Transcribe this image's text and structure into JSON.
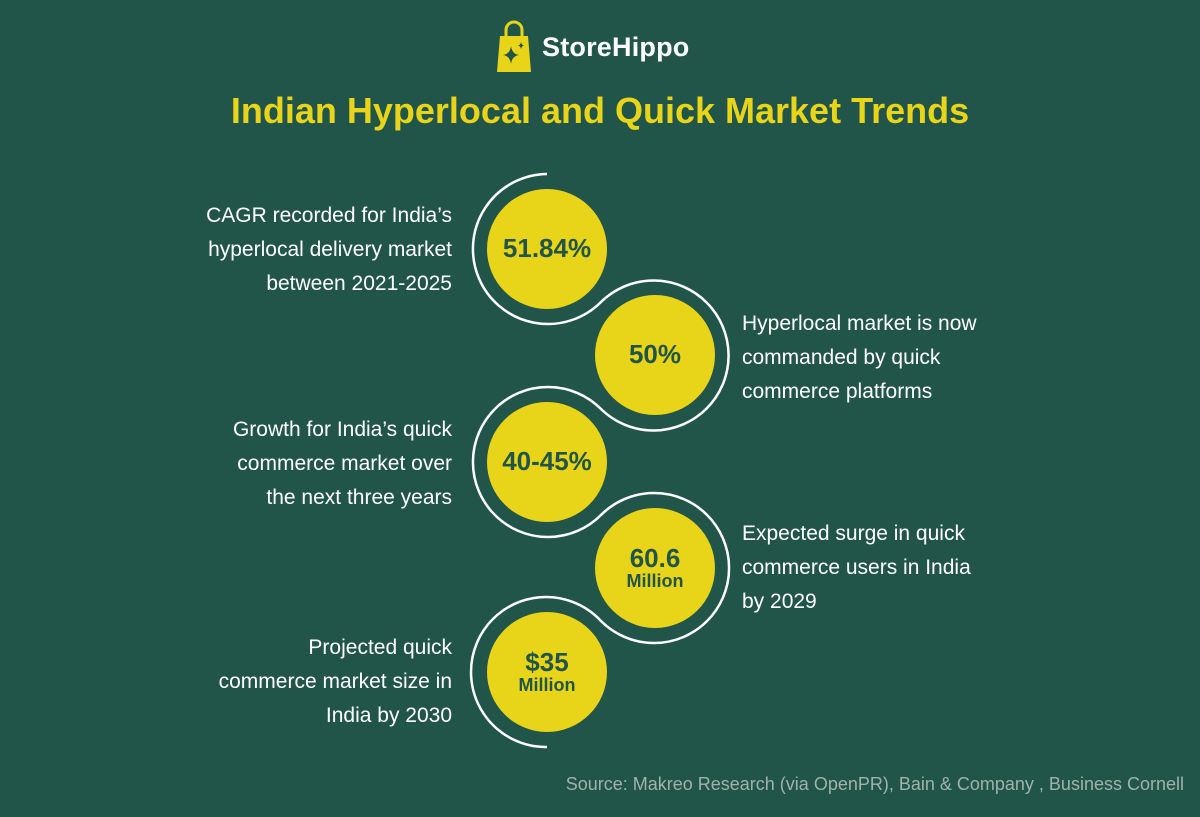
{
  "brand": {
    "name": "StoreHippo",
    "icon": "shopping-bag-sparkle-icon"
  },
  "title": "Indian Hyperlocal and Quick Market Trends",
  "stats": [
    {
      "value": "51.84%",
      "unit": "",
      "label": [
        "CAGR recorded for India’s",
        "hyperlocal delivery market",
        "between 2021-2025"
      ]
    },
    {
      "value": "50%",
      "unit": "",
      "label": [
        "Hyperlocal market is now",
        "commanded by quick",
        "commerce platforms"
      ]
    },
    {
      "value": "40-45%",
      "unit": "",
      "label": [
        "Growth for India’s quick",
        "commerce market over",
        "the next three years"
      ]
    },
    {
      "value": "60.6",
      "unit": "Million",
      "label": [
        "Expected surge in quick",
        "commerce users in India",
        "by 2029"
      ]
    },
    {
      "value": "$35",
      "unit": "Million",
      "label": [
        "Projected quick",
        "commerce market size in",
        "India by 2030"
      ]
    }
  ],
  "source": "Source: Makreo Research (via OpenPR), Bain & Company , Business Cornell",
  "colors": {
    "background": "#21554a",
    "accent": "#e8d418",
    "text": "#ffffff"
  }
}
